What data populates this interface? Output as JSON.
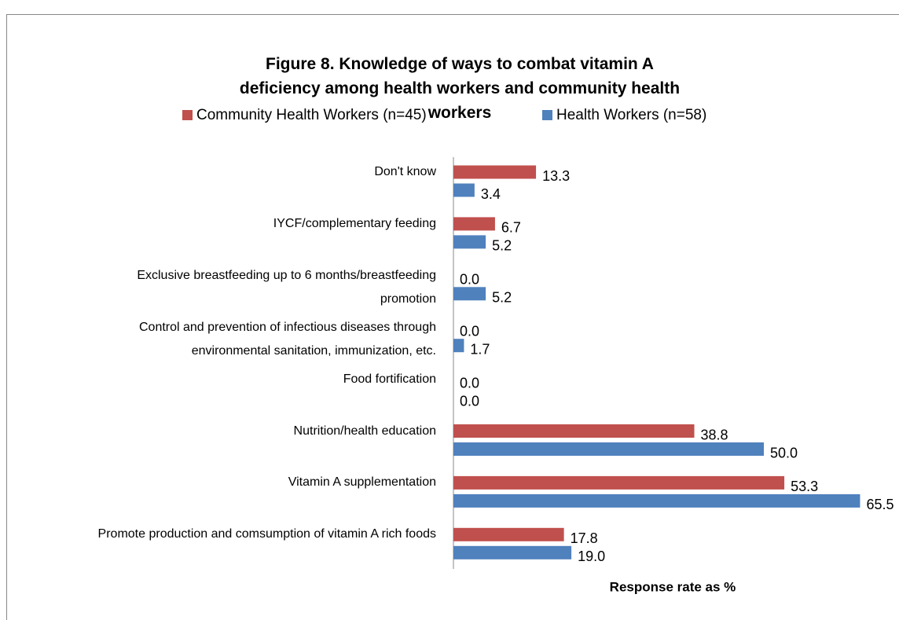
{
  "chart_data": {
    "type": "hbar",
    "title": "Figure 8. Knowledge of ways to combat vitamin A deficiency among health workers and community health workers",
    "xlabel": "Response rate as %",
    "categories": [
      "Don't know",
      "IYCF/complementary feeding",
      "Exclusive breastfeeding up to 6 months/breastfeeding promotion",
      "Control and prevention of infectious diseases through environmental sanitation, immunization, etc.",
      "Food fortification",
      "Nutrition/health education",
      "Vitamin A supplementation",
      "Promote production and comsumption of vitamin A rich foods"
    ],
    "series": [
      {
        "name": "Community Health Workers (n=45)",
        "color": "#c0504d",
        "values": [
          13.3,
          6.7,
          0,
          0,
          0,
          38.8,
          53.3,
          17.8
        ],
        "value_labels": [
          "13.3",
          "6.7",
          "0.0",
          "0.0",
          "0.0",
          "38.8",
          "53.3",
          "17.8"
        ]
      },
      {
        "name": "Health Workers (n=58)",
        "color": "#4f81bd",
        "values": [
          3.4,
          5.2,
          5.2,
          1.7,
          0,
          50,
          65.5,
          19
        ],
        "value_labels": [
          "3.4",
          "5.2",
          "5.2",
          "1.7",
          "0.0",
          "50.0",
          "65.5",
          "19.0"
        ]
      }
    ],
    "xlim": [
      0,
      70
    ],
    "legend": "top"
  }
}
